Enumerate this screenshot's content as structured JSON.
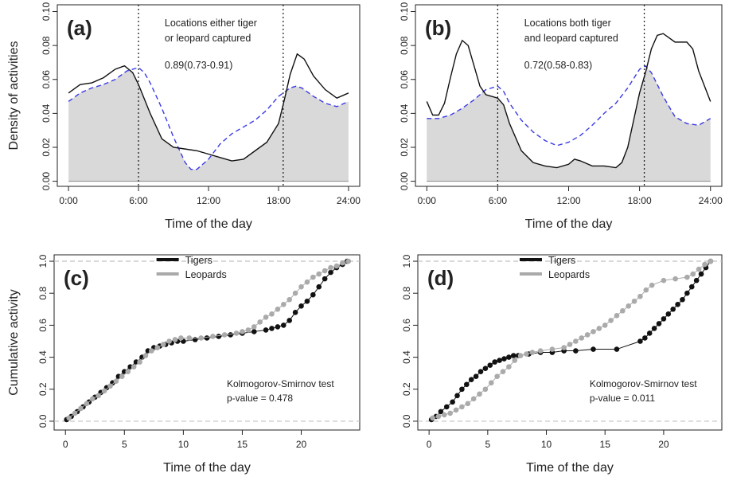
{
  "colors": {
    "tiger": "#111111",
    "leopard": "#aaaaaa",
    "overlap_fill": "#d9d9d9",
    "density_leopard_line": "#3a3ae6",
    "dashed_ref": "#c0c0c0"
  },
  "chart_data": [
    {
      "id": "a",
      "type": "area",
      "panel_label": "(a)",
      "xlabel": "Time of the day",
      "ylabel": "Density of activities",
      "x_ticks": [
        "0:00",
        "6:00",
        "12:00",
        "18:00",
        "24:00"
      ],
      "y_ticks": [
        "0.00",
        "0.02",
        "0.04",
        "0.06",
        "0.08",
        "0.10"
      ],
      "xlim": [
        0,
        24
      ],
      "ylim": [
        0,
        0.1
      ],
      "annotation_lines": [
        "Locations either tiger",
        "or leopard captured"
      ],
      "overlap_text": "0.89(0.73-0.91)",
      "vlines": [
        6,
        18.4
      ],
      "series": [
        {
          "role": "tiger",
          "style": "solid",
          "x": [
            0,
            1,
            2,
            3,
            4,
            4.8,
            5.5,
            6,
            7,
            8,
            9,
            10,
            11,
            12,
            13,
            14,
            15,
            16,
            17,
            18,
            18.5,
            19,
            19.6,
            20.2,
            21,
            22,
            23,
            24
          ],
          "y": [
            0.052,
            0.057,
            0.058,
            0.061,
            0.066,
            0.068,
            0.064,
            0.057,
            0.04,
            0.025,
            0.02,
            0.019,
            0.018,
            0.016,
            0.014,
            0.012,
            0.013,
            0.018,
            0.023,
            0.034,
            0.048,
            0.063,
            0.075,
            0.072,
            0.062,
            0.054,
            0.049,
            0.052
          ]
        },
        {
          "role": "leopard",
          "style": "dashed",
          "x": [
            0,
            1,
            2,
            3,
            4,
            5,
            6,
            6.5,
            7,
            8,
            9,
            10,
            10.5,
            11,
            12,
            13,
            14,
            15,
            16,
            17,
            18,
            19,
            19.5,
            20,
            21,
            22,
            23,
            24
          ],
          "y": [
            0.047,
            0.052,
            0.055,
            0.057,
            0.06,
            0.065,
            0.067,
            0.064,
            0.058,
            0.043,
            0.026,
            0.011,
            0.007,
            0.007,
            0.013,
            0.022,
            0.028,
            0.032,
            0.036,
            0.042,
            0.05,
            0.055,
            0.056,
            0.055,
            0.05,
            0.046,
            0.044,
            0.047
          ]
        }
      ]
    },
    {
      "id": "b",
      "type": "area",
      "panel_label": "(b)",
      "xlabel": "Time of the day",
      "ylabel": "",
      "x_ticks": [
        "0:00",
        "6:00",
        "12:00",
        "18:00",
        "24:00"
      ],
      "y_ticks": [
        "0.00",
        "0.02",
        "0.04",
        "0.06",
        "0.08",
        "0.10"
      ],
      "xlim": [
        0,
        24
      ],
      "ylim": [
        0,
        0.1
      ],
      "annotation_lines": [
        "Locations both tiger",
        "and leopard captured"
      ],
      "overlap_text": "0.72(0.58-0.83)",
      "vlines": [
        6,
        18.4
      ],
      "series": [
        {
          "role": "tiger",
          "style": "solid",
          "x": [
            0,
            0.5,
            1,
            1.5,
            2,
            2.5,
            3,
            3.5,
            4,
            4.5,
            5,
            5.5,
            6,
            6.5,
            7,
            8,
            9,
            10,
            11,
            12,
            12.5,
            13,
            14,
            15,
            16,
            16.5,
            17,
            17.5,
            18,
            18.5,
            19,
            19.5,
            20,
            21,
            22,
            22.5,
            23,
            24
          ],
          "y": [
            0.047,
            0.039,
            0.039,
            0.046,
            0.061,
            0.075,
            0.083,
            0.08,
            0.068,
            0.056,
            0.051,
            0.05,
            0.049,
            0.045,
            0.034,
            0.018,
            0.011,
            0.009,
            0.008,
            0.01,
            0.013,
            0.012,
            0.009,
            0.009,
            0.008,
            0.011,
            0.02,
            0.036,
            0.052,
            0.064,
            0.078,
            0.086,
            0.087,
            0.082,
            0.082,
            0.078,
            0.065,
            0.047
          ]
        },
        {
          "role": "leopard",
          "style": "dashed",
          "x": [
            0,
            1,
            2,
            3,
            4,
            5,
            6,
            6.5,
            7,
            8,
            9,
            10,
            11,
            12,
            13,
            14,
            15,
            16,
            17,
            18,
            18.5,
            19,
            20,
            21,
            22,
            23,
            24
          ],
          "y": [
            0.037,
            0.037,
            0.039,
            0.043,
            0.048,
            0.054,
            0.056,
            0.053,
            0.046,
            0.036,
            0.029,
            0.024,
            0.021,
            0.023,
            0.027,
            0.033,
            0.04,
            0.046,
            0.055,
            0.066,
            0.068,
            0.064,
            0.05,
            0.038,
            0.034,
            0.033,
            0.037
          ]
        }
      ]
    },
    {
      "id": "c",
      "type": "scatter",
      "panel_label": "(c)",
      "xlabel": "Time of the day",
      "ylabel": "Cumulative activity",
      "x_ticks": [
        "0",
        "5",
        "10",
        "15",
        "20"
      ],
      "x_tick_values": [
        0,
        5,
        10,
        15,
        20
      ],
      "y_ticks": [
        "0.0",
        "0.2",
        "0.4",
        "0.6",
        "0.8",
        "1.0"
      ],
      "xlim": [
        0,
        24
      ],
      "ylim": [
        0,
        1
      ],
      "legend": [
        "Tigers",
        "Leopards"
      ],
      "legend_position": "top-center",
      "test_name": "Kolmogorov-Smirnov test",
      "p_value_text": "p-value = 0.478",
      "series": [
        {
          "name": "Tigers",
          "role": "tiger",
          "x": [
            0.1,
            0.5,
            1.0,
            1.5,
            2.0,
            2.5,
            3.0,
            3.5,
            4.0,
            4.5,
            5.0,
            5.5,
            6.0,
            6.5,
            7.0,
            7.5,
            8.0,
            8.5,
            9.0,
            9.5,
            10.0,
            11.0,
            12.0,
            13.0,
            14.0,
            15.0,
            16.0,
            17.0,
            17.5,
            18.0,
            18.5,
            19.0,
            19.5,
            20.0,
            20.5,
            21.0,
            21.5,
            22.0,
            22.5,
            23.0,
            23.5,
            23.9
          ],
          "y": [
            0.01,
            0.03,
            0.06,
            0.09,
            0.12,
            0.15,
            0.18,
            0.21,
            0.24,
            0.28,
            0.31,
            0.34,
            0.37,
            0.4,
            0.44,
            0.46,
            0.47,
            0.48,
            0.49,
            0.5,
            0.5,
            0.51,
            0.52,
            0.53,
            0.54,
            0.55,
            0.56,
            0.57,
            0.58,
            0.59,
            0.6,
            0.63,
            0.68,
            0.72,
            0.75,
            0.79,
            0.84,
            0.89,
            0.93,
            0.96,
            0.98,
            1.0
          ]
        },
        {
          "name": "Leopards",
          "role": "leopard",
          "x": [
            0.3,
            0.8,
            1.3,
            1.8,
            2.3,
            2.8,
            3.3,
            3.8,
            4.3,
            4.8,
            5.3,
            5.8,
            6.3,
            6.8,
            7.3,
            7.8,
            8.3,
            8.8,
            9.3,
            9.8,
            10.5,
            11.5,
            12.5,
            13.5,
            14.5,
            15.0,
            15.5,
            16.0,
            16.5,
            17.0,
            17.5,
            18.0,
            18.5,
            19.0,
            19.5,
            20.0,
            20.5,
            21.0,
            21.5,
            22.0,
            22.5,
            23.0,
            23.5,
            24.0
          ],
          "y": [
            0.02,
            0.05,
            0.08,
            0.11,
            0.14,
            0.16,
            0.19,
            0.22,
            0.25,
            0.28,
            0.31,
            0.34,
            0.37,
            0.41,
            0.44,
            0.46,
            0.48,
            0.5,
            0.51,
            0.52,
            0.52,
            0.52,
            0.53,
            0.54,
            0.55,
            0.56,
            0.57,
            0.59,
            0.62,
            0.65,
            0.67,
            0.7,
            0.73,
            0.76,
            0.8,
            0.84,
            0.87,
            0.9,
            0.92,
            0.94,
            0.96,
            0.97,
            0.99,
            1.0
          ]
        }
      ]
    },
    {
      "id": "d",
      "type": "scatter",
      "panel_label": "(d)",
      "xlabel": "Time of the day",
      "ylabel": "",
      "x_ticks": [
        "0",
        "5",
        "10",
        "15",
        "20"
      ],
      "x_tick_values": [
        0,
        5,
        10,
        15,
        20
      ],
      "y_ticks": [
        "0.0",
        "0.2",
        "0.4",
        "0.6",
        "0.8",
        "1.0"
      ],
      "xlim": [
        0,
        24
      ],
      "ylim": [
        0,
        1
      ],
      "legend": [
        "Tigers",
        "Leopards"
      ],
      "legend_position": "top-center",
      "test_name": "Kolmogorov-Smirnov test",
      "p_value_text": "p-value = 0.011",
      "series": [
        {
          "name": "Tigers",
          "role": "tiger",
          "x": [
            0.2,
            0.6,
            1.0,
            1.5,
            2.0,
            2.4,
            2.8,
            3.2,
            3.6,
            4.0,
            4.4,
            4.8,
            5.2,
            5.6,
            6.0,
            6.4,
            6.8,
            7.2,
            7.6,
            8.5,
            9.5,
            10.5,
            11.5,
            12.5,
            14.0,
            16.0,
            18.0,
            18.4,
            18.8,
            19.2,
            19.6,
            20.0,
            20.4,
            20.8,
            21.2,
            21.6,
            22.0,
            22.4,
            22.8,
            23.2,
            23.6,
            24.0
          ],
          "y": [
            0.01,
            0.03,
            0.06,
            0.09,
            0.12,
            0.16,
            0.2,
            0.23,
            0.26,
            0.28,
            0.31,
            0.33,
            0.35,
            0.37,
            0.38,
            0.39,
            0.4,
            0.41,
            0.41,
            0.42,
            0.43,
            0.43,
            0.44,
            0.44,
            0.45,
            0.45,
            0.5,
            0.52,
            0.55,
            0.58,
            0.61,
            0.64,
            0.67,
            0.7,
            0.73,
            0.76,
            0.8,
            0.84,
            0.88,
            0.92,
            0.96,
            1.0
          ]
        },
        {
          "name": "Leopards",
          "role": "leopard",
          "x": [
            0.3,
            0.8,
            1.3,
            1.8,
            2.3,
            2.8,
            3.3,
            3.8,
            4.3,
            4.8,
            5.3,
            5.8,
            6.3,
            6.8,
            7.3,
            7.8,
            8.3,
            8.8,
            9.5,
            10.5,
            11.5,
            12.0,
            12.5,
            13.0,
            13.5,
            14.0,
            14.5,
            15.0,
            15.5,
            16.0,
            16.5,
            17.0,
            17.5,
            18.0,
            18.5,
            19.0,
            20.0,
            21.0,
            22.0,
            22.5,
            23.0,
            23.5,
            24.0
          ],
          "y": [
            0.02,
            0.03,
            0.04,
            0.05,
            0.07,
            0.09,
            0.11,
            0.14,
            0.17,
            0.2,
            0.24,
            0.28,
            0.31,
            0.34,
            0.38,
            0.41,
            0.42,
            0.43,
            0.44,
            0.45,
            0.46,
            0.48,
            0.5,
            0.52,
            0.54,
            0.56,
            0.58,
            0.6,
            0.63,
            0.66,
            0.69,
            0.72,
            0.75,
            0.78,
            0.82,
            0.85,
            0.88,
            0.89,
            0.9,
            0.92,
            0.95,
            0.98,
            1.0
          ]
        }
      ]
    }
  ]
}
